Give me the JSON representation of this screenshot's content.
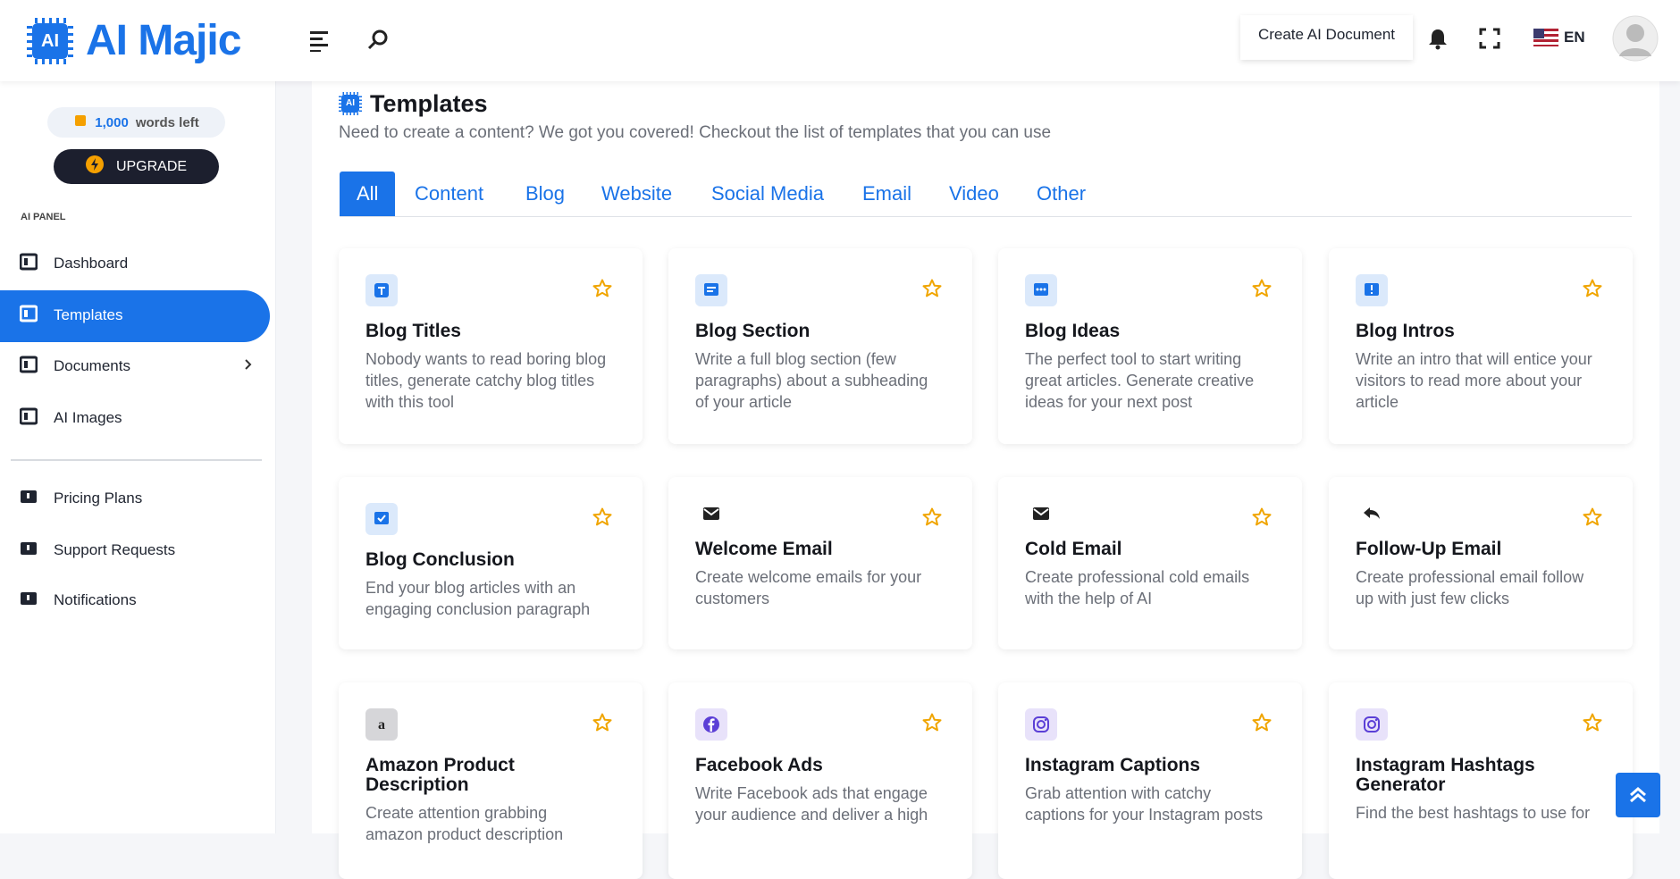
{
  "header": {
    "logo": "AI Majic",
    "logo_badge": "AI",
    "create_button": "Create AI Document",
    "language": "EN"
  },
  "sidebar": {
    "words_count": "1,000",
    "words_label": "words left",
    "upgrade": "UPGRADE",
    "section": "AI PANEL",
    "menu": [
      "Dashboard",
      "Templates",
      "Documents",
      "AI Images"
    ],
    "menu2": [
      "Pricing Plans",
      "Support Requests",
      "Notifications"
    ]
  },
  "page": {
    "title": "Templates",
    "subtitle": "Need to create a content? We got you covered! Checkout the list of templates that you can use",
    "tabs": [
      "All",
      "Content",
      "Blog",
      "Website",
      "Social Media",
      "Email",
      "Video",
      "Other"
    ]
  },
  "cards": [
    {
      "title": "Blog Titles",
      "description": [
        "Nobody wants to read boring blog",
        "titles, generate catchy blog titles",
        "with this tool"
      ]
    },
    {
      "title": "Blog Section",
      "description": [
        "Write a full blog section (few",
        "paragraphs) about a subheading",
        "of your article"
      ]
    },
    {
      "title": "Blog Ideas",
      "description": [
        "The perfect tool to start writing",
        "great articles. Generate creative",
        "ideas for your next post"
      ]
    },
    {
      "title": "Blog Intros",
      "description": [
        "Write an intro that will entice your",
        "visitors to read more about your",
        "article"
      ]
    },
    {
      "title": "Blog Conclusion",
      "description": [
        "End your blog articles with an",
        "engaging conclusion paragraph"
      ]
    },
    {
      "title": "Welcome Email",
      "description": [
        "Create welcome emails for your",
        "customers"
      ]
    },
    {
      "title": "Cold Email",
      "description": [
        "Create professional cold emails",
        "with the help of AI"
      ]
    },
    {
      "title": "Follow-Up Email",
      "description": [
        "Create professional email follow",
        "up with just few clicks"
      ]
    },
    {
      "title": "Amazon Product Description",
      "description": [
        "Create attention grabbing",
        "amazon product description"
      ]
    },
    {
      "title": "Facebook Ads",
      "description": [
        "Write Facebook ads that engage",
        "your audience and deliver a high"
      ]
    },
    {
      "title": "Instagram Captions",
      "description": [
        "Grab attention with catchy",
        "captions for your Instagram posts"
      ]
    },
    {
      "title": "Instagram Hashtags Generator",
      "description": [
        "Find the best hashtags to use for"
      ]
    }
  ]
}
